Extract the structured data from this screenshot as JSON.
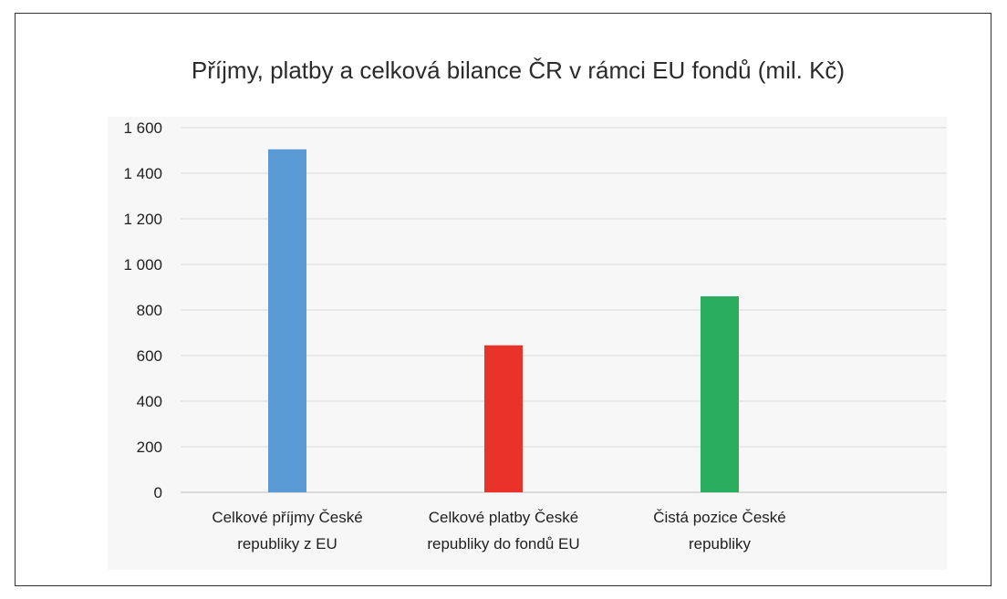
{
  "chart_data": {
    "type": "bar",
    "title": "Příjmy, platby a celková bilance ČR v rámci EU fondů (mil. Kč)",
    "xlabel": "",
    "ylabel": "",
    "ylim": [
      0,
      1600
    ],
    "y_ticks": [
      0,
      200,
      400,
      600,
      800,
      1000,
      1200,
      1400,
      1600
    ],
    "y_tick_labels": [
      "0",
      "200",
      "400",
      "600",
      "800",
      "1 000",
      "1 200",
      "1 400",
      "1 600"
    ],
    "grid": true,
    "legend": "none",
    "categories": [
      [
        "Celkové příjmy České",
        "republiky z EU"
      ],
      [
        "Celkové platby České",
        "republiky do fondů EU"
      ],
      [
        "Čistá pozice České",
        "republiky"
      ]
    ],
    "values": [
      1505,
      645,
      860
    ],
    "colors": [
      "#5b9bd5",
      "#e8322a",
      "#2aad5c"
    ]
  }
}
